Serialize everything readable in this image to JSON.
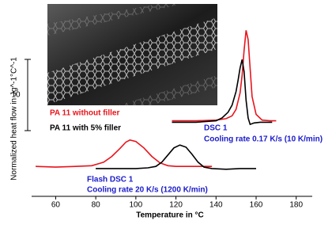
{
  "chart_data": {
    "type": "line",
    "y_label": "Normalized heat flow in Jg^-1°C^-1",
    "x_label": "Temperature in °C",
    "xlim": [
      48,
      188
    ],
    "xticks": [
      60,
      80,
      100,
      120,
      140,
      160,
      180
    ],
    "ylim": [
      0,
      27
    ],
    "scale_bar": 10,
    "series": [
      {
        "name": "PA 11 without filler",
        "color": "#e8141c",
        "x": [
          50,
          60,
          70,
          78,
          84,
          88,
          92,
          95,
          97,
          100,
          104,
          108,
          112,
          116,
          120,
          130,
          138,
          null,
          118,
          130,
          140,
          145,
          148,
          150,
          152,
          153,
          154,
          155,
          156,
          157,
          158,
          160,
          163,
          167,
          170
        ],
        "values": [
          4.2,
          4.1,
          4.2,
          4.3,
          4.8,
          5.6,
          6.7,
          7.6,
          7.9,
          7.7,
          6.8,
          5.6,
          4.7,
          4.3,
          4.2,
          4.2,
          4.2,
          null,
          10.6,
          10.6,
          10.7,
          10.9,
          11.3,
          12.2,
          14.5,
          17,
          20.5,
          23.3,
          22,
          18,
          14,
          11.5,
          10.7,
          10.6,
          10.6
        ]
      },
      {
        "name": "PA 11 with 5% filler",
        "color": "#000000",
        "x": [
          80,
          90,
          100,
          106,
          110,
          113,
          116,
          119,
          122,
          125,
          128,
          131,
          134,
          138,
          145,
          152,
          160,
          null,
          118,
          130,
          140,
          143,
          146,
          148,
          150,
          151,
          152,
          153,
          154,
          155,
          156,
          157,
          159,
          162,
          168
        ],
        "values": [
          3.9,
          3.9,
          3.9,
          4.0,
          4.2,
          4.8,
          5.8,
          6.8,
          7.2,
          6.9,
          5.9,
          4.8,
          4.1,
          3.9,
          3.8,
          3.9,
          3.9,
          null,
          10.4,
          10.4,
          10.6,
          11,
          11.8,
          12.8,
          14.7,
          16.3,
          18,
          19.2,
          17.5,
          13.5,
          11,
          10.1,
          10.3,
          10.4,
          10.4
        ]
      }
    ],
    "annotations": [
      {
        "text": "DSC 1",
        "color": "#1a1acc"
      },
      {
        "text": "Cooling rate 0.17 K/s (10 K/min)",
        "color": "#1a1acc"
      },
      {
        "text": "Flash DSC 1",
        "color": "#1a1acc"
      },
      {
        "text": "Cooling rate 20 K/s (1200 K/min)",
        "color": "#1a1acc"
      }
    ]
  }
}
